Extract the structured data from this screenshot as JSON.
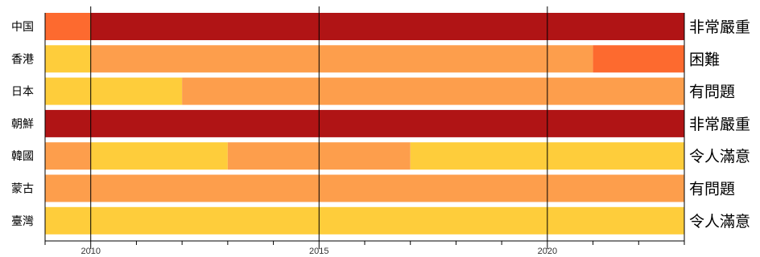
{
  "chart_data": {
    "type": "timeline",
    "title": "",
    "xlabel": "",
    "ylabel": "",
    "xlim": [
      2009,
      2023
    ],
    "x_ticks": [
      2010,
      2015,
      2020
    ],
    "grid": "vertical",
    "colors": {
      "非常嚴重": "#b01415",
      "困難": "#fd6a2f",
      "有問題": "#fd9e4c",
      "令人滿意": "#fecd3b"
    },
    "rows": [
      {
        "label": "中国",
        "status": "非常嚴重",
        "segments": [
          {
            "start": 2009,
            "end": 2010,
            "level": "困難"
          },
          {
            "start": 2010,
            "end": 2023,
            "level": "非常嚴重"
          }
        ]
      },
      {
        "label": "香港",
        "status": "困難",
        "segments": [
          {
            "start": 2009,
            "end": 2010,
            "level": "令人滿意"
          },
          {
            "start": 2010,
            "end": 2021,
            "level": "有問題"
          },
          {
            "start": 2021,
            "end": 2023,
            "level": "困難"
          }
        ]
      },
      {
        "label": "日本",
        "status": "有問題",
        "segments": [
          {
            "start": 2009,
            "end": 2012,
            "level": "令人滿意"
          },
          {
            "start": 2012,
            "end": 2023,
            "level": "有問題"
          }
        ]
      },
      {
        "label": "朝鮮",
        "status": "非常嚴重",
        "segments": [
          {
            "start": 2009,
            "end": 2023,
            "level": "非常嚴重"
          }
        ]
      },
      {
        "label": "韓國",
        "status": "令人滿意",
        "segments": [
          {
            "start": 2009,
            "end": 2010,
            "level": "有問題"
          },
          {
            "start": 2010,
            "end": 2013,
            "level": "令人滿意"
          },
          {
            "start": 2013,
            "end": 2017,
            "level": "有問題"
          },
          {
            "start": 2017,
            "end": 2023,
            "level": "令人滿意"
          }
        ]
      },
      {
        "label": "蒙古",
        "status": "有問題",
        "segments": [
          {
            "start": 2009,
            "end": 2023,
            "level": "有問題"
          }
        ]
      },
      {
        "label": "臺灣",
        "status": "令人滿意",
        "segments": [
          {
            "start": 2009,
            "end": 2023,
            "level": "令人滿意"
          }
        ]
      }
    ]
  }
}
